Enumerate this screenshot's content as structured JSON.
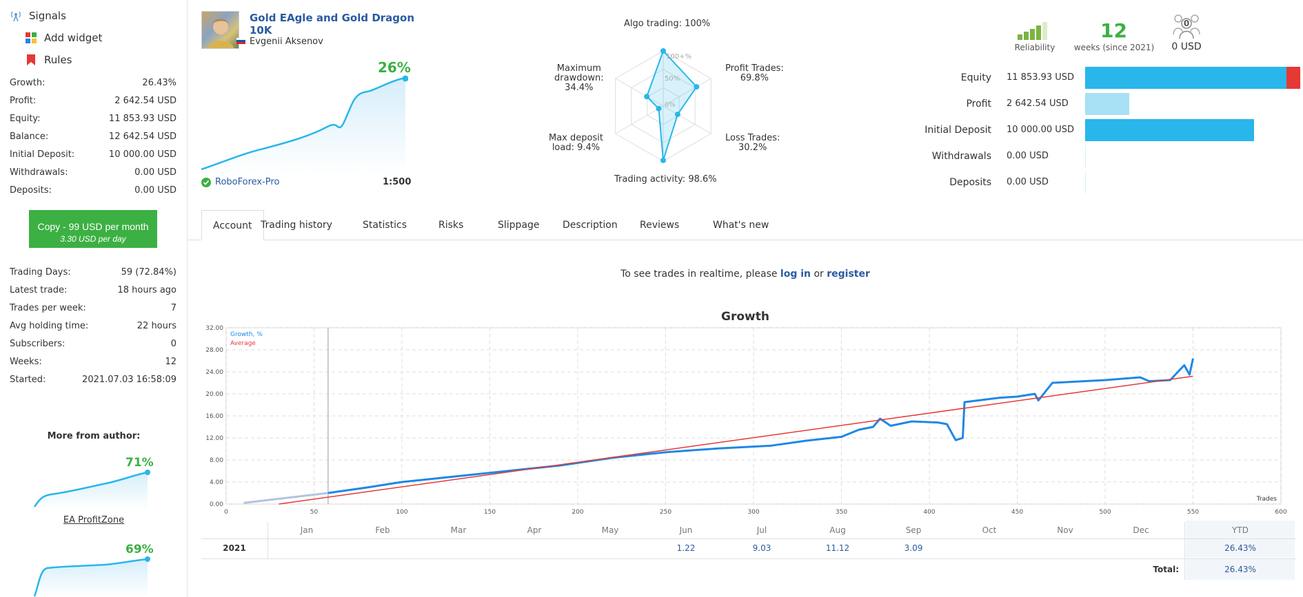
{
  "nav": [
    {
      "label": "Signals",
      "icon": "antenna-icon"
    },
    {
      "label": "Add widget",
      "icon": "widget-icon"
    },
    {
      "label": "Rules",
      "icon": "bookmark-icon"
    }
  ],
  "stats1": [
    {
      "label": "Growth:",
      "value": "26.43%"
    },
    {
      "label": "Profit:",
      "value": "2 642.54 USD"
    },
    {
      "label": "Equity:",
      "value": "11 853.93 USD"
    },
    {
      "label": "Balance:",
      "value": "12 642.54 USD"
    },
    {
      "label": "Initial Deposit:",
      "value": "10 000.00 USD"
    },
    {
      "label": "Withdrawals:",
      "value": "0.00 USD"
    },
    {
      "label": "Deposits:",
      "value": "0.00 USD"
    }
  ],
  "copy": {
    "line1": "Copy - 99 USD per month",
    "line2": "3.30 USD per day"
  },
  "stats2": [
    {
      "label": "Trading Days:",
      "value": "59 (72.84%)"
    },
    {
      "label": "Latest trade:",
      "value": "18 hours ago"
    },
    {
      "label": "Trades per week:",
      "value": "7"
    },
    {
      "label": "Avg holding time:",
      "value": "22 hours"
    },
    {
      "label": "Subscribers:",
      "value": "0"
    },
    {
      "label": "Weeks:",
      "value": "12"
    },
    {
      "label": "Started:",
      "value": "2021.07.03 16:58:09"
    }
  ],
  "more_title": "More from author:",
  "more": [
    {
      "pct": "71%",
      "name": "EA ProfitZone"
    },
    {
      "pct": "69%"
    }
  ],
  "signal": {
    "title": "Gold EAgle and Gold Dragon 10K",
    "author": "Evgenii Aksenov",
    "growth": "26%",
    "broker": "RoboForex-Pro",
    "leverage": "1:500"
  },
  "radar": {
    "algo": "Algo trading: 100%",
    "profit1": "Profit Trades:",
    "profit2": "69.8%",
    "loss1": "Loss Trades:",
    "loss2": "30.2%",
    "activity": "Trading activity: 98.6%",
    "load1": "Max deposit",
    "load2": "load: 9.4%",
    "dd1": "Maximum",
    "dd2": "drawdown:",
    "dd3": "34.4%",
    "ring100": "100+%",
    "ring50": "50%",
    "ring0": "0%",
    "values": {
      "algo": 100,
      "profit": 69.8,
      "loss": 30.2,
      "activity": 98.6,
      "load": 9.4,
      "drawdown": 34.4
    }
  },
  "summary": {
    "reliability_label": "Reliability",
    "weeks": "12",
    "weeks_label": "weeks (since 2021)",
    "subscribers_count": "0",
    "subscribers_usd": "0 USD"
  },
  "bars": [
    {
      "label": "Equity",
      "value": "11 853.93 USD",
      "fraction": 0.96,
      "color": "#29b6ea",
      "extra_color": "#e53935"
    },
    {
      "label": "Profit",
      "value": "2 642.54 USD",
      "fraction": 0.21,
      "color": "#a8e0f5"
    },
    {
      "label": "Initial Deposit",
      "value": "10 000.00 USD",
      "fraction": 0.8,
      "color": "#29b6ea"
    },
    {
      "label": "Withdrawals",
      "value": "0.00 USD",
      "fraction": 0,
      "color": "#29b6ea"
    },
    {
      "label": "Deposits",
      "value": "0.00 USD",
      "fraction": 0,
      "color": "#29b6ea"
    }
  ],
  "tabs": [
    "Account",
    "Trading history",
    "Statistics",
    "Risks",
    "Slippage",
    "Description",
    "Reviews",
    "What's new"
  ],
  "realtime": {
    "text1": "To see trades in realtime, please ",
    "login": "log in",
    "text2": " or ",
    "register": "register"
  },
  "chart_data": {
    "type": "line",
    "title": "Growth",
    "xlabel": "Trades",
    "xlim": [
      0,
      600
    ],
    "ylim": [
      0,
      32
    ],
    "xticks": [
      0,
      50,
      100,
      150,
      200,
      250,
      300,
      350,
      400,
      450,
      500,
      550,
      600
    ],
    "yticks": [
      "0.00",
      "4.00",
      "8.00",
      "12.00",
      "16.00",
      "20.00",
      "24.00",
      "28.00",
      "32.00"
    ],
    "series": [
      {
        "name": "Growth, %",
        "color": "#1e88e5",
        "x": [
          58,
          80,
          100,
          130,
          160,
          190,
          220,
          250,
          280,
          310,
          330,
          350,
          360,
          368,
          372,
          378,
          390,
          405,
          410,
          415,
          419,
          420,
          440,
          450,
          460,
          462,
          470,
          500,
          520,
          525,
          537,
          545,
          548,
          550
        ],
        "y": [
          2.0,
          3.0,
          4.0,
          5.0,
          6.0,
          7.0,
          8.4,
          9.4,
          10.1,
          10.6,
          11.5,
          12.2,
          13.5,
          14.0,
          15.5,
          14.2,
          15.0,
          14.8,
          14.5,
          11.6,
          12.0,
          18.5,
          19.3,
          19.5,
          20.0,
          18.8,
          22.0,
          22.5,
          23.0,
          22.3,
          22.5,
          25.2,
          23.5,
          26.43
        ]
      },
      {
        "name": "Average",
        "color": "#e53935",
        "x": [
          30,
          550
        ],
        "y": [
          0,
          23.2
        ]
      }
    ],
    "prefix_series": {
      "color": "#b0c4de",
      "x": [
        10,
        58
      ],
      "y": [
        0.2,
        2.0
      ]
    }
  },
  "months_header": [
    "Jan",
    "Feb",
    "Mar",
    "Apr",
    "May",
    "Jun",
    "Jul",
    "Aug",
    "Sep",
    "Oct",
    "Nov",
    "Dec"
  ],
  "ytd_label": "YTD",
  "year": "2021",
  "month_values": [
    "",
    "",
    "",
    "",
    "",
    "1.22",
    "9.03",
    "11.12",
    "3.09",
    "",
    "",
    ""
  ],
  "ytd_value": "26.43%",
  "total_label": "Total:",
  "total_value": "26.43%"
}
